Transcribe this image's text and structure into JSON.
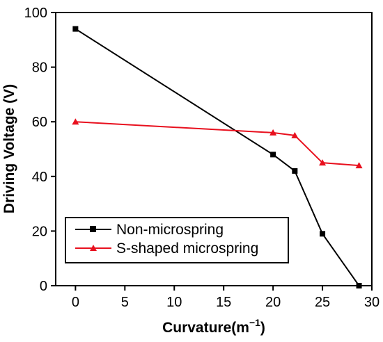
{
  "chart_data": {
    "type": "line",
    "xlabel": "Curvature(m",
    "xlabel_superscript": "−1",
    "xlabel_close": ")",
    "ylabel": "Driving Voltage (V)",
    "xlim": [
      -2,
      30
    ],
    "ylim": [
      0,
      100
    ],
    "xticks": [
      0,
      5,
      10,
      15,
      20,
      25,
      30
    ],
    "yticks": [
      0,
      20,
      40,
      60,
      80,
      100
    ],
    "grid": false,
    "legend_position": "bottom-left",
    "series": [
      {
        "name": "Non-microspring",
        "color": "#000000",
        "marker": "square",
        "x": [
          0,
          20,
          22.2,
          25,
          28.7
        ],
        "y": [
          94,
          48,
          42,
          19,
          0
        ]
      },
      {
        "name": "S-shaped microspring",
        "color": "#e8101e",
        "marker": "triangle",
        "x": [
          0,
          20,
          22.2,
          25,
          28.7
        ],
        "y": [
          60,
          56,
          55,
          45,
          44
        ]
      }
    ]
  }
}
